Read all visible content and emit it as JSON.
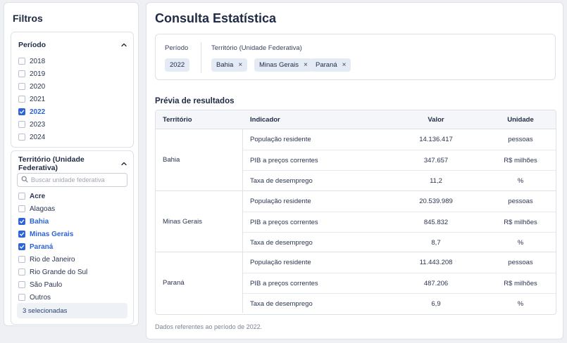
{
  "sidebar": {
    "title": "Filtros",
    "periodo": {
      "title": "Período",
      "items": [
        {
          "label": "2018",
          "checked": false
        },
        {
          "label": "2019",
          "checked": false
        },
        {
          "label": "2020",
          "checked": false
        },
        {
          "label": "2021",
          "checked": false
        },
        {
          "label": "2022",
          "checked": true
        },
        {
          "label": "2023",
          "checked": false
        },
        {
          "label": "2024",
          "checked": false
        }
      ]
    },
    "territorio": {
      "title": "Território (Unidade Federativa)",
      "search_placeholder": "Buscar unidade federativa",
      "items": [
        {
          "label": "Acre",
          "checked": false
        },
        {
          "label": "Alagoas",
          "checked": false
        },
        {
          "label": "Bahia",
          "checked": true
        },
        {
          "label": "Minas Gerais",
          "checked": true
        },
        {
          "label": "Paraná",
          "checked": true
        },
        {
          "label": "Rio de Janeiro",
          "checked": false
        },
        {
          "label": "Rio Grande do Sul",
          "checked": false
        },
        {
          "label": "São Paulo",
          "checked": false
        },
        {
          "label": "Outros",
          "checked": false
        }
      ],
      "selected_count": "3 selecionadas"
    }
  },
  "main": {
    "title": "Consulta Estatística",
    "query": {
      "periodo_label": "Período",
      "periodo_value": "2022",
      "territorio_label": "Território (Unidade Federativa)",
      "chips": [
        "Bahia",
        "Minas Gerais",
        "Paraná"
      ],
      "remove_glyph": "×"
    },
    "preview_title": "Prévia de resultados",
    "table": {
      "headers": {
        "territorio": "Território",
        "indicador": "Indicador",
        "valor": "Valor",
        "unidade": "Unidade"
      },
      "groups": [
        {
          "territorio": "Bahia",
          "rows": [
            {
              "indicador": "População residente",
              "valor": "14.136.417",
              "unidade": "pessoas"
            },
            {
              "indicador": "PIB a preços correntes",
              "valor": "347.657",
              "unidade": "R$ milhões"
            },
            {
              "indicador": "Taxa de desemprego",
              "valor": "11,2",
              "unidade": "%"
            }
          ]
        },
        {
          "territorio": "Minas Gerais",
          "rows": [
            {
              "indicador": "População residente",
              "valor": "20.539.989",
              "unidade": "pessoas"
            },
            {
              "indicador": "PIB a preços correntes",
              "valor": "845.832",
              "unidade": "R$ milhões"
            },
            {
              "indicador": "Taxa de desemprego",
              "valor": "8,7",
              "unidade": "%"
            }
          ]
        },
        {
          "territorio": "Paraná",
          "rows": [
            {
              "indicador": "População residente",
              "valor": "11.443.208",
              "unidade": "pessoas"
            },
            {
              "indicador": "PIB a preços correntes",
              "valor": "487.206",
              "unidade": "R$ milhões"
            },
            {
              "indicador": "Taxa de desemprego",
              "valor": "6,9",
              "unidade": "%"
            }
          ]
        }
      ]
    },
    "footnote": "Dados referentes ao período de 2022."
  },
  "colors": {
    "accent": "#2f63d6",
    "chip_bg": "#e4ebf5",
    "text": "#1f2a44"
  },
  "icons": {
    "collapse": "chevron-up-icon",
    "search": "search-icon",
    "check": "check-icon",
    "remove": "close-icon"
  }
}
